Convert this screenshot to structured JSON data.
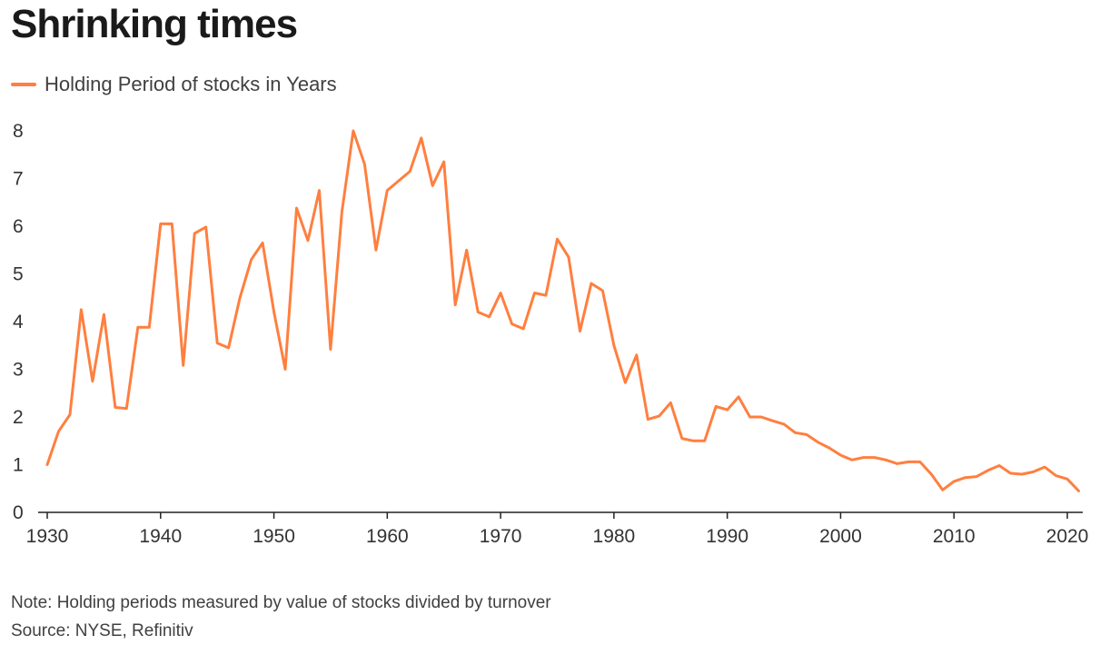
{
  "colors": {
    "line": "#ff7f3f",
    "axis": "#222222",
    "tick_text": "#333333"
  },
  "chart_data": {
    "type": "line",
    "title": "Shrinking times",
    "xlabel": "",
    "ylabel": "",
    "legend_position": "top-left",
    "grid": false,
    "xlim": [
      1929.5,
      2022
    ],
    "ylim": [
      0,
      8.2
    ],
    "x_ticks": [
      1930,
      1940,
      1950,
      1960,
      1970,
      1980,
      1990,
      2000,
      2010,
      2020
    ],
    "x_tick_labels": [
      "1930",
      "1940",
      "1950",
      "1960",
      "1970",
      "1980",
      "1990",
      "2000",
      "2010",
      "2020"
    ],
    "y_ticks": [
      0,
      1,
      2,
      3,
      4,
      5,
      6,
      7,
      8
    ],
    "y_tick_labels": [
      "0",
      "1",
      "2",
      "3",
      "4",
      "5",
      "6",
      "7",
      "8"
    ],
    "series": [
      {
        "name": "Holding Period of stocks in Years",
        "x": [
          1930,
          1931,
          1932,
          1933,
          1934,
          1935,
          1936,
          1937,
          1938,
          1939,
          1940,
          1941,
          1942,
          1943,
          1944,
          1945,
          1946,
          1947,
          1948,
          1949,
          1950,
          1951,
          1952,
          1953,
          1954,
          1955,
          1956,
          1957,
          1958,
          1959,
          1960,
          1961,
          1962,
          1963,
          1964,
          1965,
          1966,
          1967,
          1968,
          1969,
          1970,
          1971,
          1972,
          1973,
          1974,
          1975,
          1976,
          1977,
          1978,
          1979,
          1980,
          1981,
          1982,
          1983,
          1984,
          1985,
          1986,
          1987,
          1988,
          1989,
          1990,
          1991,
          1992,
          1993,
          1994,
          1995,
          1996,
          1997,
          1998,
          1999,
          2000,
          2001,
          2002,
          2003,
          2004,
          2005,
          2006,
          2007,
          2008,
          2009,
          2010,
          2011,
          2012,
          2013,
          2014,
          2015,
          2016,
          2017,
          2018,
          2019,
          2020,
          2021
        ],
        "values": [
          1.0,
          1.7,
          2.05,
          4.25,
          2.75,
          4.15,
          2.2,
          2.18,
          3.88,
          3.88,
          6.05,
          6.05,
          3.08,
          5.85,
          5.98,
          3.55,
          3.45,
          4.5,
          5.3,
          5.65,
          4.2,
          3.0,
          6.38,
          5.7,
          6.75,
          3.42,
          6.3,
          8.0,
          7.3,
          5.5,
          6.75,
          6.95,
          7.15,
          7.85,
          6.85,
          7.35,
          4.35,
          5.5,
          4.2,
          4.1,
          4.6,
          3.95,
          3.85,
          4.6,
          4.55,
          5.73,
          5.35,
          3.8,
          4.8,
          4.65,
          3.5,
          2.72,
          3.3,
          1.95,
          2.02,
          2.3,
          1.55,
          1.5,
          1.5,
          2.22,
          2.15,
          2.42,
          2.0,
          2.0,
          1.92,
          1.85,
          1.67,
          1.63,
          1.47,
          1.35,
          1.2,
          1.1,
          1.15,
          1.15,
          1.1,
          1.02,
          1.06,
          1.06,
          0.8,
          0.47,
          0.65,
          0.73,
          0.75,
          0.88,
          0.98,
          0.82,
          0.8,
          0.85,
          0.95,
          0.77,
          0.7,
          0.45
        ]
      }
    ],
    "note": "Note: Holding periods measured by value of stocks divided by turnover",
    "source": "Source: NYSE, Refinitiv"
  }
}
